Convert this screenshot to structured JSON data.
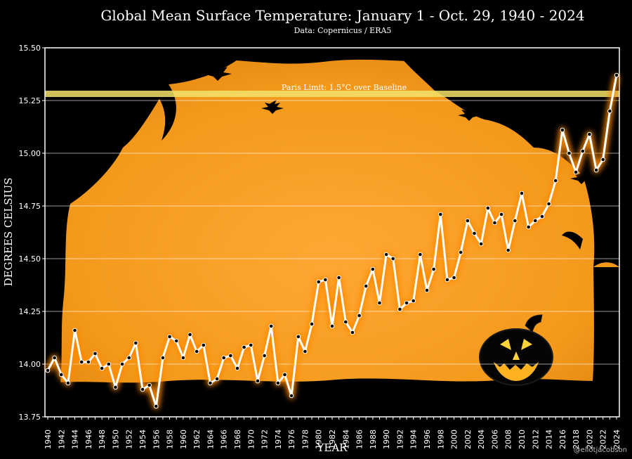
{
  "title": "Global Mean Surface Temperature: January 1 - Oct. 29, 1940 - 2024",
  "subtitle": "Data: Copernicus / ERA5",
  "credit": "@eliotjacobson",
  "paris_label": "Paris Limit: 1.5°C over Baseline",
  "colors": {
    "background": "#000000",
    "plot_orange": "#f39c1e",
    "line": "#ffffff",
    "glow": "#ff8a00",
    "paris_band": "#f3e26a"
  },
  "chart_data": {
    "type": "line",
    "title": "Global Mean Surface Temperature: January 1 - Oct. 29, 1940 - 2024",
    "xlabel": "YEAR",
    "ylabel": "DEGREES CELSIUS",
    "ylim": [
      13.75,
      15.5
    ],
    "yticks": [
      "13.75",
      "14.00",
      "14.25",
      "14.50",
      "14.75",
      "15.00",
      "15.25",
      "15.50"
    ],
    "xlim": [
      1940,
      2024
    ],
    "xtick_step": 2,
    "paris_limit": 15.28,
    "x": [
      1940,
      1941,
      1942,
      1943,
      1944,
      1945,
      1946,
      1947,
      1948,
      1949,
      1950,
      1951,
      1952,
      1953,
      1954,
      1955,
      1956,
      1957,
      1958,
      1959,
      1960,
      1961,
      1962,
      1963,
      1964,
      1965,
      1966,
      1967,
      1968,
      1969,
      1970,
      1971,
      1972,
      1973,
      1974,
      1975,
      1976,
      1977,
      1978,
      1979,
      1980,
      1981,
      1982,
      1983,
      1984,
      1985,
      1986,
      1987,
      1988,
      1989,
      1990,
      1991,
      1992,
      1993,
      1994,
      1995,
      1996,
      1997,
      1998,
      1999,
      2000,
      2001,
      2002,
      2003,
      2004,
      2005,
      2006,
      2007,
      2008,
      2009,
      2010,
      2011,
      2012,
      2013,
      2014,
      2015,
      2016,
      2017,
      2018,
      2019,
      2020,
      2021,
      2022,
      2023,
      2024
    ],
    "values": [
      13.97,
      14.03,
      13.95,
      13.91,
      14.16,
      14.01,
      14.01,
      14.05,
      13.98,
      14.0,
      13.89,
      14.0,
      14.03,
      14.1,
      13.88,
      13.9,
      13.8,
      14.03,
      14.13,
      14.11,
      14.03,
      14.14,
      14.06,
      14.09,
      13.91,
      13.93,
      14.03,
      14.04,
      13.98,
      14.08,
      14.09,
      13.92,
      14.04,
      14.18,
      13.91,
      13.95,
      13.85,
      14.13,
      14.06,
      14.19,
      14.39,
      14.4,
      14.18,
      14.41,
      14.2,
      14.15,
      14.23,
      14.37,
      14.45,
      14.29,
      14.52,
      14.5,
      14.26,
      14.29,
      14.3,
      14.52,
      14.35,
      14.45,
      14.71,
      14.4,
      14.41,
      14.53,
      14.68,
      14.62,
      14.57,
      14.74,
      14.67,
      14.71,
      14.54,
      14.68,
      14.81,
      14.65,
      14.68,
      14.7,
      14.76,
      14.87,
      15.11,
      15.0,
      14.91,
      15.01,
      15.09,
      14.92,
      14.97,
      15.2,
      15.37
    ]
  }
}
